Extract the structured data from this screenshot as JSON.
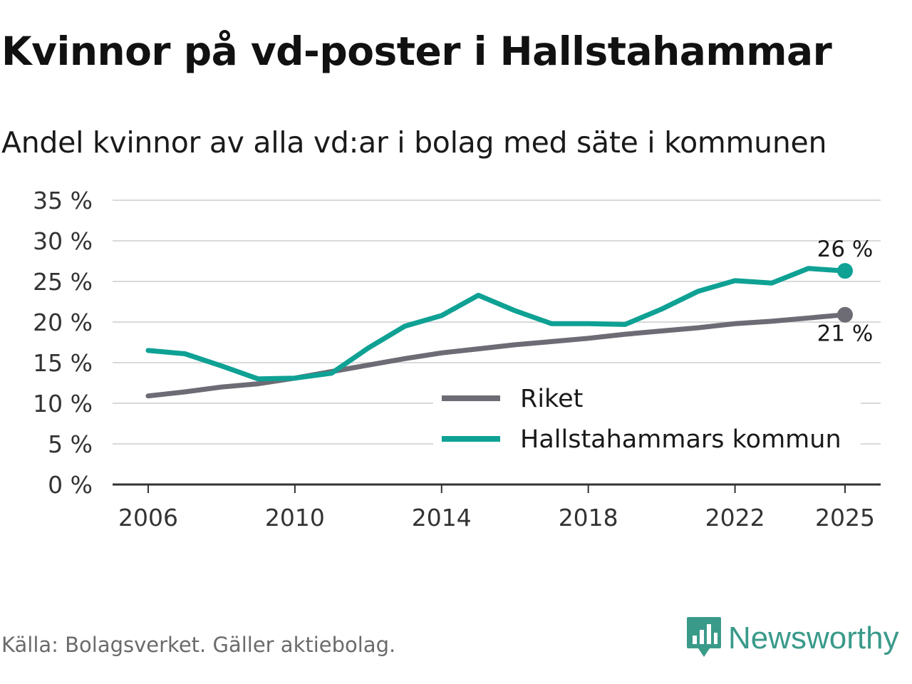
{
  "header": {
    "title": "Kvinnor på vd-poster i Hallstahammar",
    "subtitle": "Andel kvinnor av alla vd:ar i bolag med säte i kommunen"
  },
  "footer": {
    "source": "Källa: Bolagsverket. Gäller aktiebolag.",
    "brand": "Newsworthy",
    "brand_icon": "newsworthy-logo-icon"
  },
  "colors": {
    "riket": "#6d6b74",
    "kommun": "#0ea194",
    "grid": "#d9d9d9",
    "axis": "#333333",
    "brand": "#3a9a8a"
  },
  "chart_data": {
    "type": "line",
    "title": "Kvinnor på vd-poster i Hallstahammar",
    "subtitle": "Andel kvinnor av alla vd:ar i bolag med säte i kommunen",
    "xlabel": "",
    "ylabel": "",
    "x": [
      2006,
      2007,
      2008,
      2009,
      2010,
      2011,
      2012,
      2013,
      2014,
      2015,
      2016,
      2017,
      2018,
      2019,
      2020,
      2021,
      2022,
      2023,
      2024,
      2025
    ],
    "xlim": [
      2006,
      2025
    ],
    "ylim": [
      0,
      35
    ],
    "yticks": [
      0,
      5,
      10,
      15,
      20,
      25,
      30,
      35
    ],
    "ytick_labels": [
      "0 %",
      "5 %",
      "10 %",
      "15 %",
      "20 %",
      "25 %",
      "30 %",
      "35 %"
    ],
    "xticks": [
      2006,
      2010,
      2014,
      2018,
      2022,
      2025
    ],
    "xtick_labels": [
      "2006",
      "2010",
      "2014",
      "2018",
      "2022",
      "2025"
    ],
    "grid": true,
    "legend_position": "bottom-right",
    "series": [
      {
        "name": "Riket",
        "key": "riket",
        "values": [
          10.9,
          11.4,
          12.0,
          12.4,
          13.1,
          13.9,
          14.7,
          15.5,
          16.2,
          16.7,
          17.2,
          17.6,
          18.0,
          18.5,
          18.9,
          19.3,
          19.8,
          20.1,
          20.5,
          20.9
        ],
        "end_label": "21 %",
        "end_label_position": "below"
      },
      {
        "name": "Hallstahammars kommun",
        "key": "kommun",
        "values": [
          16.5,
          16.1,
          14.6,
          13.0,
          13.1,
          13.7,
          16.8,
          19.5,
          20.8,
          23.3,
          21.4,
          19.8,
          19.8,
          19.7,
          21.6,
          23.8,
          25.1,
          24.8,
          26.6,
          26.3
        ],
        "end_label": "26 %",
        "end_label_position": "above"
      }
    ]
  }
}
